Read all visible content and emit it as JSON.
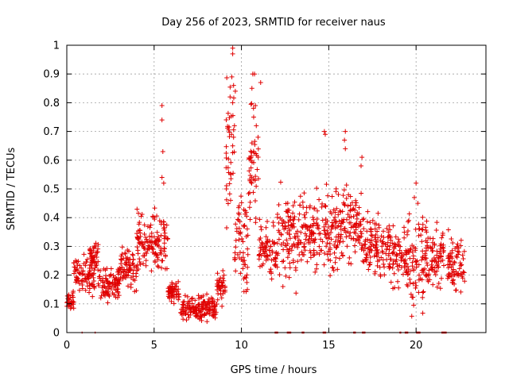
{
  "chart_data": {
    "type": "scatter",
    "title": "Day 256 of 2023, SRMTID for receiver naus",
    "xlabel": "GPS time / hours",
    "ylabel": "SRMTID / TECUs",
    "xlim": [
      0,
      24
    ],
    "ylim": [
      0,
      1
    ],
    "x_ticks": [
      "0",
      "5",
      "10",
      "15",
      "20"
    ],
    "y_ticks": [
      "0",
      "0.1",
      "0.2",
      "0.3",
      "0.4",
      "0.5",
      "0.6",
      "0.7",
      "0.8",
      "0.9",
      "1"
    ],
    "grid": true,
    "marker": "+",
    "series_color": "#e00000",
    "zero_line_segments": [
      [
        0.85,
        0.9
      ],
      [
        1.6,
        1.65
      ],
      [
        11.9,
        12.1
      ],
      [
        12.6,
        12.85
      ],
      [
        13.45,
        13.6
      ],
      [
        14.65,
        14.85
      ],
      [
        16.4,
        16.55
      ],
      [
        16.9,
        17.1
      ],
      [
        19.05,
        19.15
      ],
      [
        19.35,
        19.55
      ],
      [
        20.0,
        20.25
      ],
      [
        21.45,
        21.75
      ]
    ],
    "point_density_profile": [
      {
        "x_range": [
          0.0,
          0.4
        ],
        "y_range": [
          0.06,
          0.15
        ]
      },
      {
        "x_range": [
          0.4,
          1.6
        ],
        "y_range": [
          0.1,
          0.3
        ]
      },
      {
        "x_range": [
          1.3,
          1.8
        ],
        "y_range": [
          0.18,
          0.34
        ]
      },
      {
        "x_range": [
          1.8,
          3.0
        ],
        "y_range": [
          0.08,
          0.25
        ]
      },
      {
        "x_range": [
          3.0,
          4.0
        ],
        "y_range": [
          0.12,
          0.32
        ]
      },
      {
        "x_range": [
          4.0,
          4.7
        ],
        "y_range": [
          0.18,
          0.47
        ]
      },
      {
        "x_range": [
          4.7,
          5.8
        ],
        "y_range": [
          0.18,
          0.46
        ]
      },
      {
        "x_range": [
          5.8,
          6.5
        ],
        "y_range": [
          0.08,
          0.2
        ]
      },
      {
        "x_range": [
          6.5,
          8.6
        ],
        "y_range": [
          0.03,
          0.14
        ]
      },
      {
        "x_range": [
          8.6,
          9.1
        ],
        "y_range": [
          0.07,
          0.25
        ]
      },
      {
        "x_range": [
          9.1,
          9.6
        ],
        "y_range": [
          0.3,
          0.98
        ]
      },
      {
        "x_range": [
          9.6,
          10.4
        ],
        "y_range": [
          0.1,
          0.55
        ]
      },
      {
        "x_range": [
          10.4,
          11.0
        ],
        "y_range": [
          0.25,
          0.9
        ]
      },
      {
        "x_range": [
          11.0,
          12.0
        ],
        "y_range": [
          0.15,
          0.42
        ]
      },
      {
        "x_range": [
          12.0,
          13.3
        ],
        "y_range": [
          0.1,
          0.55
        ]
      },
      {
        "x_range": [
          13.3,
          14.3
        ],
        "y_range": [
          0.18,
          0.52
        ]
      },
      {
        "x_range": [
          14.3,
          15.5
        ],
        "y_range": [
          0.15,
          0.55
        ]
      },
      {
        "x_range": [
          15.5,
          17.0
        ],
        "y_range": [
          0.2,
          0.55
        ]
      },
      {
        "x_range": [
          17.0,
          18.5
        ],
        "y_range": [
          0.15,
          0.45
        ]
      },
      {
        "x_range": [
          18.5,
          19.6
        ],
        "y_range": [
          0.12,
          0.42
        ]
      },
      {
        "x_range": [
          19.6,
          20.4
        ],
        "y_range": [
          0.0,
          0.48
        ]
      },
      {
        "x_range": [
          20.4,
          21.6
        ],
        "y_range": [
          0.12,
          0.42
        ]
      },
      {
        "x_range": [
          21.8,
          22.8
        ],
        "y_range": [
          0.1,
          0.38
        ]
      }
    ],
    "spike_points": [
      [
        5.45,
        0.79
      ],
      [
        5.45,
        0.74
      ],
      [
        5.5,
        0.63
      ],
      [
        5.45,
        0.54
      ],
      [
        5.55,
        0.52
      ],
      [
        9.5,
        0.99
      ],
      [
        9.5,
        0.97
      ],
      [
        9.45,
        0.89
      ],
      [
        9.55,
        0.86
      ],
      [
        9.65,
        0.84
      ],
      [
        9.35,
        0.82
      ],
      [
        9.5,
        0.8
      ],
      [
        9.6,
        0.72
      ],
      [
        9.55,
        0.68
      ],
      [
        9.5,
        0.65
      ],
      [
        10.75,
        0.9
      ],
      [
        10.65,
        0.9
      ],
      [
        10.6,
        0.85
      ],
      [
        11.1,
        0.87
      ],
      [
        10.8,
        0.79
      ],
      [
        10.7,
        0.75
      ],
      [
        10.85,
        0.72
      ],
      [
        10.95,
        0.68
      ],
      [
        10.6,
        0.66
      ],
      [
        14.75,
        0.7
      ],
      [
        14.8,
        0.69
      ],
      [
        15.95,
        0.7
      ],
      [
        15.9,
        0.67
      ],
      [
        15.95,
        0.64
      ],
      [
        16.9,
        0.61
      ],
      [
        16.85,
        0.58
      ],
      [
        20.0,
        0.52
      ],
      [
        19.9,
        0.47
      ],
      [
        20.1,
        0.45
      ]
    ]
  }
}
